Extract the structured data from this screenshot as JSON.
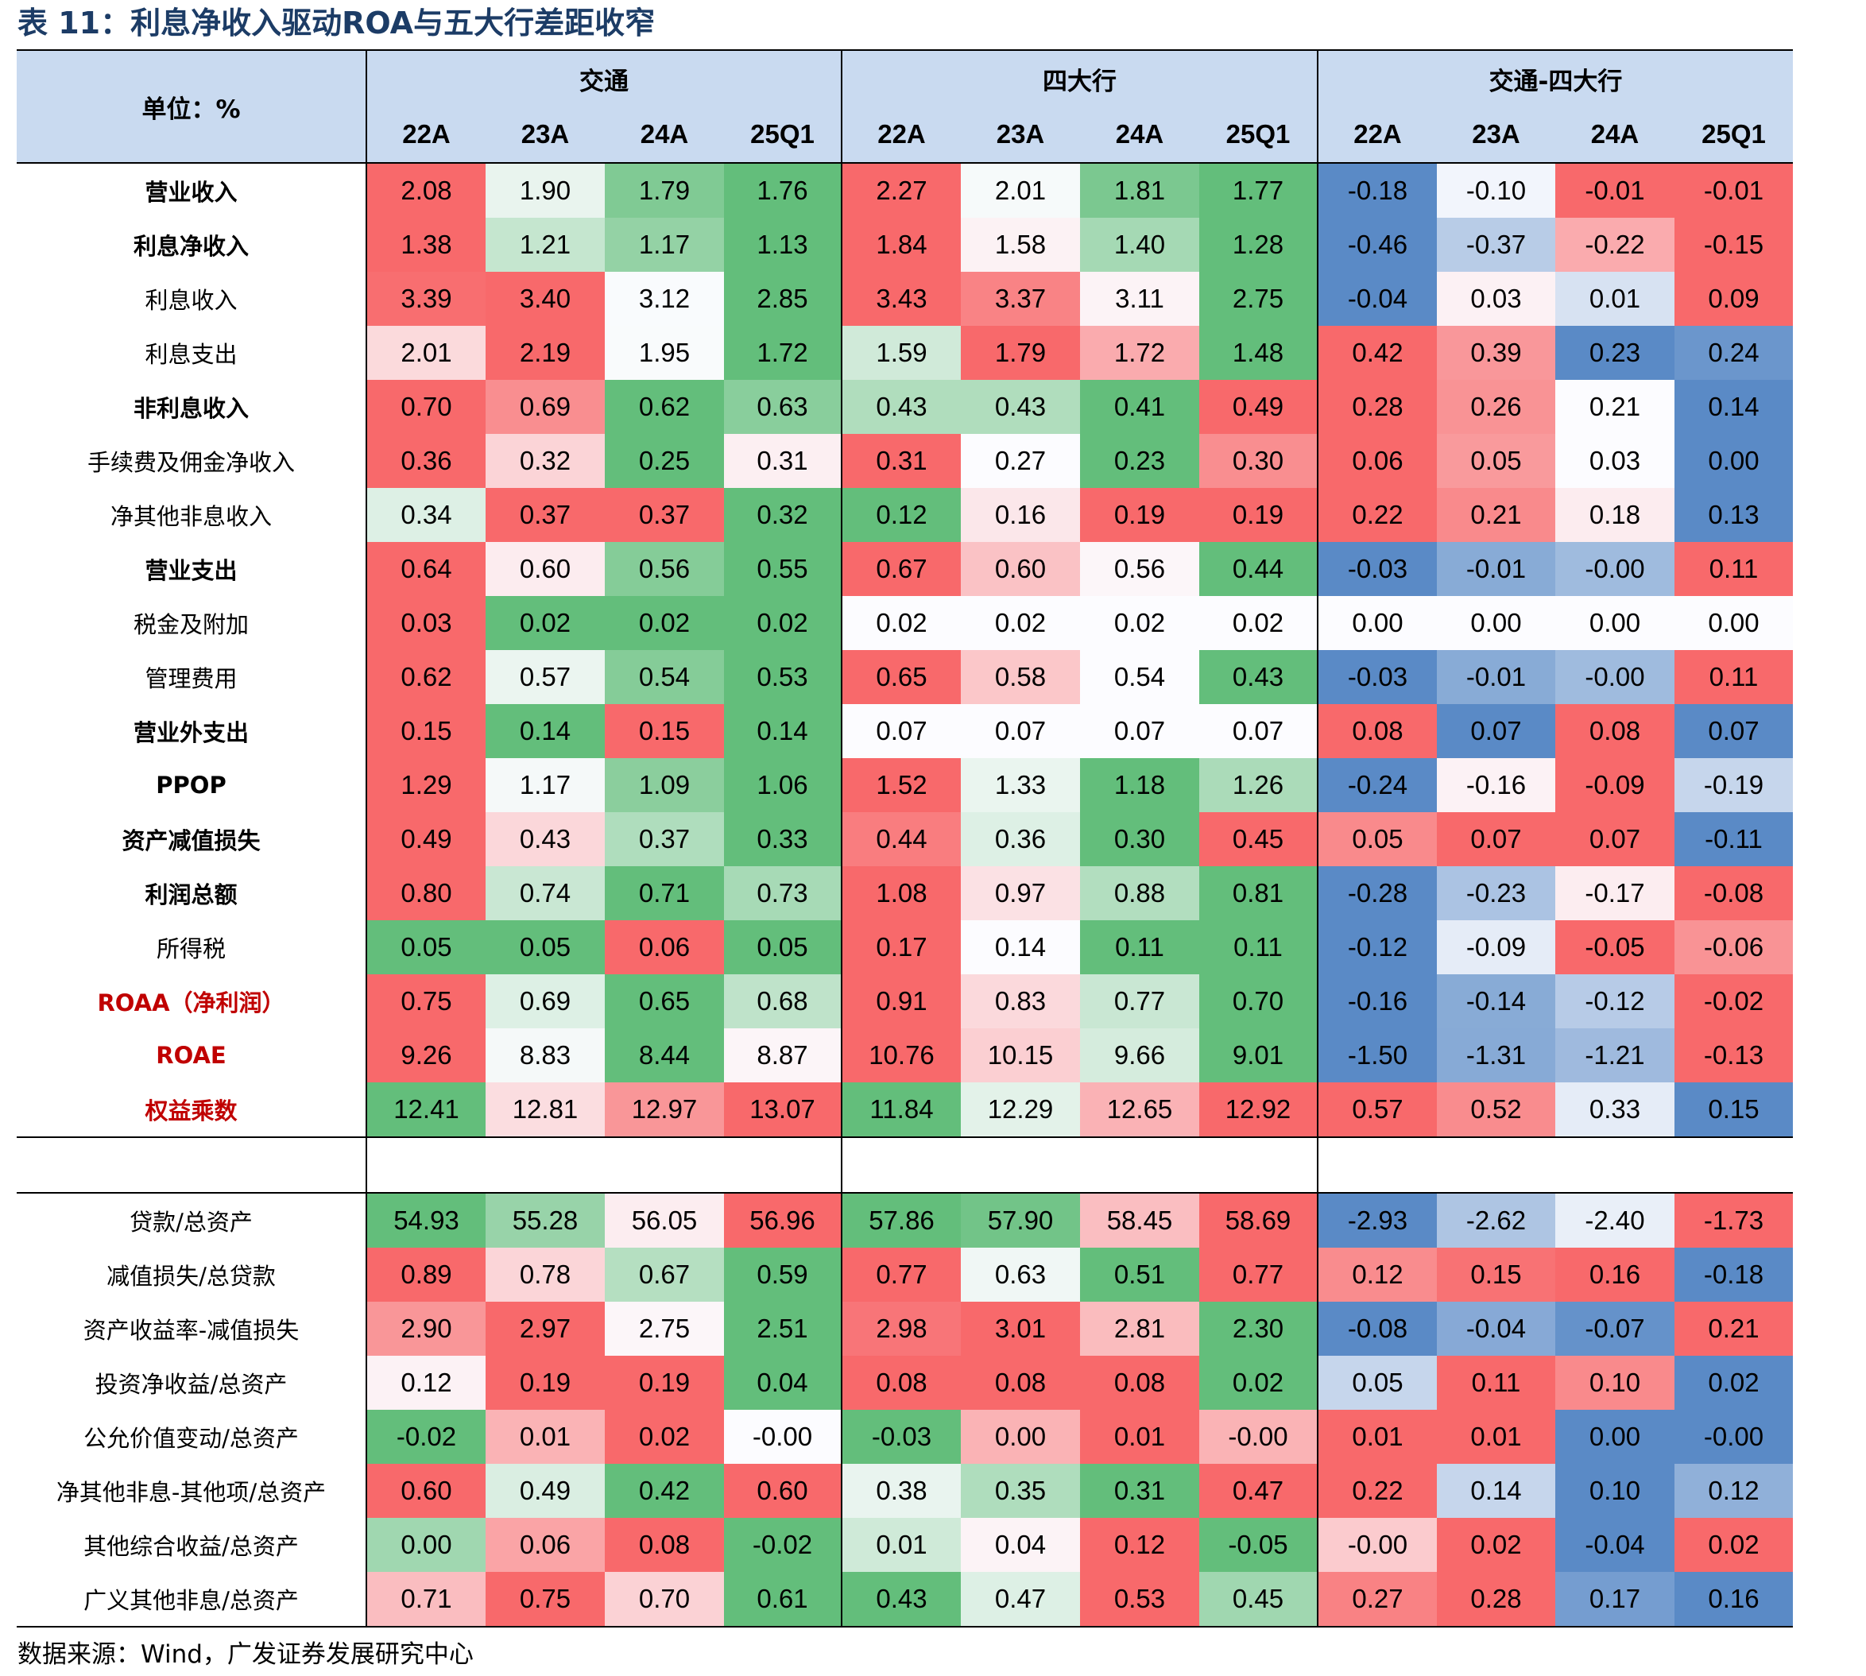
{
  "title": "表 11：利息净收入驱动ROA与五大行差距收窄",
  "header": {
    "unit_label": "单位：%",
    "groups": [
      "交通",
      "四大行",
      "交通-四大行"
    ],
    "periods": [
      "22A",
      "23A",
      "24A",
      "25Q1"
    ]
  },
  "colors": {
    "header_bg": "#c9daf0",
    "positive_scale": "#f8696b",
    "negative_scale": "#63be7b",
    "diff_scale_low": "#5a8ac6"
  },
  "section1": [
    {
      "label": "营业收入",
      "style": "bold",
      "values": [
        "2.08",
        "1.90",
        "1.79",
        "1.76",
        "2.27",
        "2.01",
        "1.81",
        "1.77",
        "-0.18",
        "-0.10",
        "-0.01",
        "-0.01"
      ]
    },
    {
      "label": "利息净收入",
      "style": "bold",
      "values": [
        "1.38",
        "1.21",
        "1.17",
        "1.13",
        "1.84",
        "1.58",
        "1.40",
        "1.28",
        "-0.46",
        "-0.37",
        "-0.22",
        "-0.15"
      ]
    },
    {
      "label": "利息收入",
      "style": "normal",
      "values": [
        "3.39",
        "3.40",
        "3.12",
        "2.85",
        "3.43",
        "3.37",
        "3.11",
        "2.75",
        "-0.04",
        "0.03",
        "0.01",
        "0.09"
      ]
    },
    {
      "label": "利息支出",
      "style": "normal",
      "values": [
        "2.01",
        "2.19",
        "1.95",
        "1.72",
        "1.59",
        "1.79",
        "1.72",
        "1.48",
        "0.42",
        "0.39",
        "0.23",
        "0.24"
      ]
    },
    {
      "label": "非利息收入",
      "style": "bold",
      "values": [
        "0.70",
        "0.69",
        "0.62",
        "0.63",
        "0.43",
        "0.43",
        "0.41",
        "0.49",
        "0.28",
        "0.26",
        "0.21",
        "0.14"
      ]
    },
    {
      "label": "手续费及佣金净收入",
      "style": "normal",
      "values": [
        "0.36",
        "0.32",
        "0.25",
        "0.31",
        "0.31",
        "0.27",
        "0.23",
        "0.30",
        "0.06",
        "0.05",
        "0.03",
        "0.00"
      ]
    },
    {
      "label": "净其他非息收入",
      "style": "normal",
      "values": [
        "0.34",
        "0.37",
        "0.37",
        "0.32",
        "0.12",
        "0.16",
        "0.19",
        "0.19",
        "0.22",
        "0.21",
        "0.18",
        "0.13"
      ]
    },
    {
      "label": "营业支出",
      "style": "bold",
      "values": [
        "0.64",
        "0.60",
        "0.56",
        "0.55",
        "0.67",
        "0.60",
        "0.56",
        "0.44",
        "-0.03",
        "-0.01",
        "-0.00",
        "0.11"
      ]
    },
    {
      "label": "税金及附加",
      "style": "normal",
      "values": [
        "0.03",
        "0.02",
        "0.02",
        "0.02",
        "0.02",
        "0.02",
        "0.02",
        "0.02",
        "0.00",
        "0.00",
        "0.00",
        "0.00"
      ]
    },
    {
      "label": "管理费用",
      "style": "normal",
      "values": [
        "0.62",
        "0.57",
        "0.54",
        "0.53",
        "0.65",
        "0.58",
        "0.54",
        "0.43",
        "-0.03",
        "-0.01",
        "-0.00",
        "0.11"
      ]
    },
    {
      "label": "营业外支出",
      "style": "bold",
      "values": [
        "0.15",
        "0.14",
        "0.15",
        "0.14",
        "0.07",
        "0.07",
        "0.07",
        "0.07",
        "0.08",
        "0.07",
        "0.08",
        "0.07"
      ]
    },
    {
      "label": "PPOP",
      "style": "bold",
      "values": [
        "1.29",
        "1.17",
        "1.09",
        "1.06",
        "1.52",
        "1.33",
        "1.18",
        "1.26",
        "-0.24",
        "-0.16",
        "-0.09",
        "-0.19"
      ]
    },
    {
      "label": "资产减值损失",
      "style": "bold",
      "values": [
        "0.49",
        "0.43",
        "0.37",
        "0.33",
        "0.44",
        "0.36",
        "0.30",
        "0.45",
        "0.05",
        "0.07",
        "0.07",
        "-0.11"
      ]
    },
    {
      "label": "利润总额",
      "style": "bold",
      "values": [
        "0.80",
        "0.74",
        "0.71",
        "0.73",
        "1.08",
        "0.97",
        "0.88",
        "0.81",
        "-0.28",
        "-0.23",
        "-0.17",
        "-0.08"
      ]
    },
    {
      "label": "所得税",
      "style": "normal",
      "values": [
        "0.05",
        "0.05",
        "0.06",
        "0.05",
        "0.17",
        "0.14",
        "0.11",
        "0.11",
        "-0.12",
        "-0.09",
        "-0.05",
        "-0.06"
      ]
    },
    {
      "label": "ROAA（净利润）",
      "style": "red",
      "values": [
        "0.75",
        "0.69",
        "0.65",
        "0.68",
        "0.91",
        "0.83",
        "0.77",
        "0.70",
        "-0.16",
        "-0.14",
        "-0.12",
        "-0.02"
      ]
    },
    {
      "label": "ROAE",
      "style": "red",
      "values": [
        "9.26",
        "8.83",
        "8.44",
        "8.87",
        "10.76",
        "10.15",
        "9.66",
        "9.01",
        "-1.50",
        "-1.31",
        "-1.21",
        "-0.13"
      ]
    },
    {
      "label": "权益乘数",
      "style": "red",
      "values": [
        "12.41",
        "12.81",
        "12.97",
        "13.07",
        "11.84",
        "12.29",
        "12.65",
        "12.92",
        "0.57",
        "0.52",
        "0.33",
        "0.15"
      ]
    }
  ],
  "section2": [
    {
      "label": "贷款/总资产",
      "style": "normal",
      "values": [
        "54.93",
        "55.28",
        "56.05",
        "56.96",
        "57.86",
        "57.90",
        "58.45",
        "58.69",
        "-2.93",
        "-2.62",
        "-2.40",
        "-1.73"
      ]
    },
    {
      "label": "减值损失/总贷款",
      "style": "normal",
      "values": [
        "0.89",
        "0.78",
        "0.67",
        "0.59",
        "0.77",
        "0.63",
        "0.51",
        "0.77",
        "0.12",
        "0.15",
        "0.16",
        "-0.18"
      ]
    },
    {
      "label": "资产收益率-减值损失",
      "style": "normal",
      "values": [
        "2.90",
        "2.97",
        "2.75",
        "2.51",
        "2.98",
        "3.01",
        "2.81",
        "2.30",
        "-0.08",
        "-0.04",
        "-0.07",
        "0.21"
      ]
    },
    {
      "label": "投资净收益/总资产",
      "style": "normal",
      "values": [
        "0.12",
        "0.19",
        "0.19",
        "0.04",
        "0.08",
        "0.08",
        "0.08",
        "0.02",
        "0.05",
        "0.11",
        "0.10",
        "0.02"
      ]
    },
    {
      "label": "公允价值变动/总资产",
      "style": "normal",
      "values": [
        "-0.02",
        "0.01",
        "0.02",
        "-0.00",
        "-0.03",
        "0.00",
        "0.01",
        "-0.00",
        "0.01",
        "0.01",
        "0.00",
        "-0.00"
      ]
    },
    {
      "label": "净其他非息-其他项/总资产",
      "style": "normal",
      "values": [
        "0.60",
        "0.49",
        "0.42",
        "0.60",
        "0.38",
        "0.35",
        "0.31",
        "0.47",
        "0.22",
        "0.14",
        "0.10",
        "0.12"
      ]
    },
    {
      "label": "其他综合收益/总资产",
      "style": "normal",
      "values": [
        "0.00",
        "0.06",
        "0.08",
        "-0.02",
        "0.01",
        "0.04",
        "0.12",
        "-0.05",
        "-0.00",
        "0.02",
        "-0.04",
        "0.02"
      ]
    },
    {
      "label": "广义其他非息/总资产",
      "style": "normal",
      "values": [
        "0.71",
        "0.75",
        "0.70",
        "0.61",
        "0.43",
        "0.47",
        "0.53",
        "0.45",
        "0.27",
        "0.28",
        "0.17",
        "0.16"
      ]
    }
  ],
  "source": "数据来源：Wind，广发证券发展研究中心"
}
